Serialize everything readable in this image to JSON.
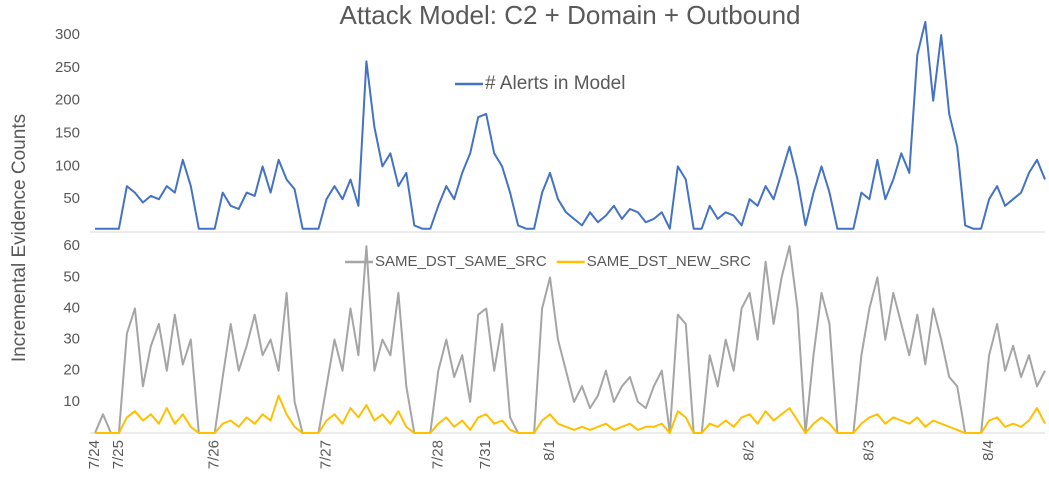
{
  "chart_data": [
    {
      "type": "line",
      "title": "Attack Model: C2 + Domain + Outbound",
      "y_label": "Incremental Evidence Counts",
      "ylim": [
        0,
        320
      ],
      "yticks": [
        50,
        100,
        150,
        200,
        250,
        300
      ],
      "legend": "top-center",
      "series": [
        {
          "name": "# Alerts in Model",
          "color": "#4472c4",
          "values": [
            5,
            5,
            5,
            5,
            70,
            60,
            45,
            55,
            50,
            70,
            60,
            110,
            70,
            5,
            5,
            5,
            60,
            40,
            35,
            60,
            55,
            100,
            60,
            110,
            80,
            65,
            5,
            5,
            5,
            50,
            70,
            50,
            80,
            40,
            260,
            160,
            100,
            120,
            70,
            90,
            10,
            5,
            5,
            40,
            70,
            50,
            90,
            120,
            175,
            180,
            120,
            100,
            60,
            10,
            5,
            5,
            60,
            90,
            50,
            30,
            20,
            10,
            30,
            15,
            25,
            40,
            20,
            35,
            30,
            15,
            20,
            30,
            5,
            100,
            80,
            5,
            5,
            40,
            20,
            30,
            25,
            10,
            50,
            40,
            70,
            50,
            90,
            130,
            80,
            10,
            60,
            100,
            60,
            5,
            5,
            5,
            60,
            50,
            110,
            50,
            80,
            120,
            90,
            270,
            320,
            200,
            300,
            180,
            130,
            10,
            5,
            5,
            50,
            70,
            40,
            50,
            60,
            90,
            110,
            80
          ]
        }
      ]
    },
    {
      "type": "line",
      "ylim": [
        0,
        62
      ],
      "yticks": [
        10,
        20,
        30,
        40,
        50,
        60
      ],
      "legend": "top-center",
      "categories": [
        "7/24",
        null,
        null,
        "7/25",
        null,
        null,
        null,
        null,
        null,
        null,
        null,
        null,
        null,
        null,
        null,
        "7/26",
        null,
        null,
        null,
        null,
        null,
        null,
        null,
        null,
        null,
        null,
        null,
        null,
        null,
        "7/27",
        null,
        null,
        null,
        null,
        null,
        null,
        null,
        null,
        null,
        null,
        null,
        null,
        null,
        "7/28",
        null,
        null,
        null,
        null,
        null,
        "7/31",
        null,
        null,
        null,
        null,
        null,
        null,
        null,
        "8/1",
        null,
        null,
        null,
        null,
        null,
        null,
        null,
        null,
        null,
        null,
        null,
        null,
        null,
        null,
        null,
        null,
        null,
        null,
        null,
        null,
        null,
        null,
        null,
        null,
        "8/2",
        null,
        null,
        null,
        null,
        null,
        null,
        null,
        null,
        null,
        null,
        null,
        null,
        null,
        null,
        "8/3",
        null,
        null,
        null,
        null,
        null,
        null,
        null,
        null,
        null,
        null,
        null,
        null,
        null,
        null,
        "8/4",
        null,
        null,
        null,
        null,
        null,
        null,
        null
      ],
      "series": [
        {
          "name": "SAME_DST_SAME_SRC",
          "color": "#a5a5a5",
          "values": [
            0,
            6,
            0,
            0,
            32,
            40,
            15,
            28,
            35,
            20,
            38,
            22,
            30,
            0,
            0,
            0,
            18,
            35,
            20,
            28,
            38,
            25,
            30,
            20,
            45,
            10,
            0,
            0,
            0,
            15,
            30,
            20,
            40,
            25,
            60,
            20,
            30,
            25,
            45,
            15,
            0,
            0,
            0,
            20,
            30,
            18,
            25,
            10,
            38,
            40,
            20,
            35,
            5,
            0,
            0,
            0,
            40,
            50,
            30,
            20,
            10,
            15,
            8,
            12,
            20,
            10,
            15,
            18,
            10,
            8,
            15,
            20,
            0,
            38,
            35,
            0,
            0,
            25,
            15,
            30,
            20,
            40,
            45,
            30,
            55,
            35,
            50,
            60,
            40,
            0,
            25,
            45,
            35,
            0,
            0,
            0,
            25,
            40,
            50,
            30,
            45,
            35,
            25,
            38,
            22,
            40,
            30,
            18,
            15,
            0,
            0,
            0,
            25,
            35,
            20,
            28,
            18,
            25,
            15,
            20
          ]
        },
        {
          "name": "SAME_DST_NEW_SRC",
          "color": "#ffc000",
          "values": [
            0,
            0,
            0,
            0,
            5,
            7,
            4,
            6,
            3,
            8,
            3,
            6,
            2,
            0,
            0,
            0,
            3,
            4,
            2,
            5,
            3,
            6,
            4,
            12,
            6,
            2,
            0,
            0,
            0,
            4,
            6,
            3,
            8,
            5,
            9,
            4,
            6,
            3,
            7,
            2,
            0,
            0,
            0,
            3,
            5,
            2,
            4,
            1,
            5,
            6,
            3,
            4,
            1,
            0,
            0,
            0,
            4,
            6,
            3,
            2,
            1,
            2,
            1,
            2,
            3,
            1,
            2,
            3,
            1,
            2,
            2,
            3,
            0,
            7,
            5,
            0,
            0,
            3,
            2,
            4,
            2,
            5,
            6,
            3,
            7,
            4,
            6,
            8,
            4,
            0,
            3,
            5,
            3,
            0,
            0,
            0,
            3,
            5,
            6,
            3,
            5,
            4,
            3,
            5,
            2,
            4,
            3,
            2,
            1,
            0,
            0,
            0,
            4,
            5,
            2,
            3,
            2,
            4,
            8,
            3
          ]
        }
      ]
    }
  ]
}
